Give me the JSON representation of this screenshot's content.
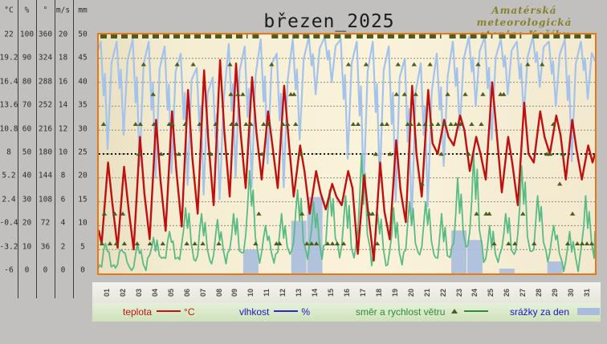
{
  "title": "březen_2025",
  "station": {
    "line1": "Amatérská meteorologická",
    "line2": "stanice Košíky"
  },
  "scale_table": {
    "headers": [
      "°C",
      "%",
      "°",
      "m/s",
      "mm"
    ],
    "rows": [
      [
        "22",
        "100",
        "360",
        "20",
        "50"
      ],
      [
        "19.2",
        "90",
        "324",
        "18",
        "45"
      ],
      [
        "16.4",
        "80",
        "288",
        "16",
        "40"
      ],
      [
        "13.6",
        "70",
        "252",
        "14",
        "35"
      ],
      [
        "10.8",
        "60",
        "216",
        "12",
        "30"
      ],
      [
        "8",
        "50",
        "180",
        "10",
        "25"
      ],
      [
        "5.2",
        "40",
        "144",
        "8",
        "20"
      ],
      [
        "2.4",
        "30",
        "108",
        "6",
        "15"
      ],
      [
        "-0.4",
        "20",
        "72",
        "4",
        "10"
      ],
      [
        "-3.2",
        "10",
        "36",
        "2",
        "5"
      ],
      [
        "-6",
        "0",
        "0",
        "0",
        "0"
      ]
    ]
  },
  "legend": {
    "temperature_label": "teplota",
    "temperature_unit": "°C",
    "humidity_label": "vlhkost",
    "humidity_unit": "%",
    "wind_label": "směr a rychlost větru",
    "rain_label": "srážky za den"
  },
  "colors": {
    "temperature": "#bf0f0f",
    "humidity": "#a3c3ec",
    "wind_speed": "#58bb84",
    "wind_direction": "#4d5d1f",
    "precipitation": "#a9bcde",
    "plot_border": "#e67917",
    "grid": "#8c8a7c",
    "midline": "#1a1a1a"
  },
  "chart_data": {
    "type": "line",
    "title": "březen_2025",
    "categories": [
      "01",
      "02",
      "03",
      "04",
      "05",
      "06",
      "07",
      "08",
      "09",
      "10",
      "11",
      "12",
      "13",
      "14",
      "15",
      "16",
      "17",
      "18",
      "19",
      "20",
      "21",
      "22",
      "23",
      "24",
      "25",
      "26",
      "27",
      "28",
      "29",
      "30",
      "31"
    ],
    "axis_scales": {
      "temperature_c": [
        -6,
        22
      ],
      "humidity_pct": [
        0,
        100
      ],
      "wind_direction_deg": [
        0,
        360
      ],
      "wind_speed_ms": [
        0,
        20
      ],
      "precipitation_mm": [
        0,
        50
      ]
    },
    "grid": "on",
    "legend_position": "bottom",
    "series": [
      {
        "name": "teplota (°C) denní minimum",
        "values": [
          -2.5,
          -3,
          -3.2,
          -2,
          -1,
          -0.5,
          1,
          2,
          3,
          4,
          5,
          4,
          3,
          1,
          1.5,
          2,
          -3.7,
          -4.5,
          -2,
          0,
          3,
          8,
          9,
          6,
          5,
          3.5,
          2,
          7,
          8,
          5,
          5
        ]
      },
      {
        "name": "teplota (°C) denní maximum",
        "values": [
          7,
          6.5,
          10,
          12,
          13,
          15.5,
          17.8,
          19,
          18.6,
          17,
          13,
          16,
          9,
          6,
          4.5,
          6,
          5.5,
          7,
          9.6,
          16,
          15.5,
          12,
          12.5,
          10,
          16.4,
          10,
          14,
          13,
          12.5,
          12,
          9
        ]
      },
      {
        "name": "vlhkost (%) denní maximum",
        "values": [
          97,
          97,
          98,
          97,
          95,
          92,
          86,
          82,
          96,
          95,
          98,
          92,
          98,
          99,
          99,
          98,
          97,
          97,
          95,
          90,
          88,
          92,
          97,
          99,
          99,
          98,
          97,
          99,
          97,
          98,
          97
        ]
      },
      {
        "name": "vlhkost (%) denní minimum",
        "values": [
          52,
          58,
          45,
          40,
          42,
          37,
          33,
          31,
          40,
          36,
          46,
          36,
          56,
          75,
          80,
          48,
          35,
          38,
          30,
          20,
          28,
          45,
          60,
          70,
          56,
          75,
          66,
          78,
          70,
          47,
          73
        ]
      },
      {
        "name": "rychlost větru (m/s) denní maximum",
        "values": [
          2.5,
          2,
          2.5,
          3,
          3.5,
          5.5,
          5,
          4.5,
          5,
          8.6,
          4,
          5,
          7,
          6,
          7,
          6.5,
          10,
          5,
          5.5,
          6,
          6,
          5,
          8,
          10,
          4,
          5,
          9,
          6.5,
          4,
          3.5,
          6.5
        ]
      },
      {
        "name": "rychlost větru (m/s) základ",
        "values": [
          0.5,
          0.8,
          0.5,
          1,
          1,
          1.5,
          1,
          1,
          1.5,
          2,
          1,
          1.5,
          2,
          1.5,
          2,
          1.5,
          2,
          1,
          1,
          1.5,
          1.5,
          1,
          2,
          2,
          1,
          1.5,
          2,
          1.5,
          1,
          0.5,
          1.5
        ]
      },
      {
        "name": "srážky za den (mm)",
        "values": [
          0,
          0,
          0,
          0,
          0,
          0,
          0,
          0,
          0,
          5,
          0,
          0,
          11,
          16,
          0,
          0,
          0,
          0,
          0,
          0,
          0,
          0,
          9,
          7,
          0,
          1,
          0,
          0,
          2.5,
          0,
          0
        ]
      }
    ],
    "wind_direction_markers_deg": [
      [
        0.2,
        45
      ],
      [
        0.3,
        225
      ],
      [
        0.35,
        90
      ],
      [
        0.7,
        45
      ],
      [
        1.0,
        90
      ],
      [
        1.1,
        45
      ],
      [
        1.5,
        90
      ],
      [
        1.6,
        45
      ],
      [
        2.3,
        225
      ],
      [
        2.4,
        45
      ],
      [
        2.5,
        180
      ],
      [
        2.6,
        225
      ],
      [
        2.8,
        315
      ],
      [
        3.2,
        45
      ],
      [
        3.4,
        270
      ],
      [
        3.45,
        225
      ],
      [
        3.9,
        180
      ],
      [
        4.0,
        45
      ],
      [
        4.4,
        225
      ],
      [
        4.6,
        225
      ],
      [
        4.9,
        315
      ],
      [
        5.0,
        180
      ],
      [
        5.4,
        225
      ],
      [
        5.5,
        45
      ],
      [
        5.9,
        315
      ],
      [
        6.0,
        45
      ],
      [
        6.3,
        225
      ],
      [
        6.5,
        45
      ],
      [
        7.0,
        180
      ],
      [
        7.3,
        225
      ],
      [
        7.5,
        45
      ],
      [
        8.2,
        315
      ],
      [
        8.25,
        270
      ],
      [
        8.3,
        225
      ],
      [
        8.6,
        225
      ],
      [
        8.7,
        270
      ],
      [
        9.0,
        270
      ],
      [
        9.2,
        225
      ],
      [
        9.5,
        225
      ],
      [
        9.8,
        45
      ],
      [
        10.0,
        90
      ],
      [
        10.2,
        180
      ],
      [
        10.3,
        225
      ],
      [
        10.6,
        225
      ],
      [
        10.8,
        315
      ],
      [
        11.1,
        45
      ],
      [
        11.3,
        45
      ],
      [
        11.5,
        225
      ],
      [
        11.8,
        225
      ],
      [
        12.0,
        270
      ],
      [
        12.2,
        270
      ],
      [
        12.3,
        225
      ],
      [
        12.6,
        180
      ],
      [
        12.7,
        90
      ],
      [
        13.0,
        45
      ],
      [
        13.3,
        45
      ],
      [
        13.6,
        45
      ],
      [
        14.3,
        45
      ],
      [
        14.6,
        45
      ],
      [
        14.9,
        45
      ],
      [
        15.3,
        45
      ],
      [
        15.6,
        315
      ],
      [
        15.9,
        225
      ],
      [
        16.2,
        225
      ],
      [
        16.7,
        315
      ],
      [
        16.9,
        90
      ],
      [
        17.1,
        90
      ],
      [
        17.3,
        180
      ],
      [
        17.4,
        45
      ],
      [
        17.7,
        225
      ],
      [
        18.0,
        225
      ],
      [
        18.2,
        180
      ],
      [
        18.6,
        270
      ],
      [
        18.7,
        315
      ],
      [
        19.1,
        270
      ],
      [
        19.3,
        225
      ],
      [
        19.5,
        225
      ],
      [
        19.7,
        315
      ],
      [
        19.8,
        270
      ],
      [
        20.0,
        225
      ],
      [
        20.2,
        135
      ],
      [
        20.4,
        225
      ],
      [
        20.7,
        315
      ],
      [
        20.8,
        225
      ],
      [
        21.2,
        225
      ],
      [
        21.4,
        180
      ],
      [
        21.6,
        225
      ],
      [
        21.8,
        270
      ],
      [
        22.0,
        225
      ],
      [
        22.3,
        225
      ],
      [
        22.6,
        225
      ],
      [
        22.9,
        270
      ],
      [
        23.1,
        180
      ],
      [
        23.3,
        225
      ],
      [
        23.6,
        90
      ],
      [
        23.7,
        315
      ],
      [
        23.9,
        225
      ],
      [
        24.0,
        270
      ],
      [
        24.2,
        90
      ],
      [
        24.4,
        90
      ],
      [
        24.7,
        45
      ],
      [
        25.1,
        270
      ],
      [
        25.3,
        270
      ],
      [
        25.6,
        45
      ],
      [
        26.0,
        45
      ],
      [
        26.5,
        90
      ],
      [
        26.8,
        315
      ],
      [
        27.2,
        45
      ],
      [
        27.7,
        315
      ],
      [
        28.0,
        180
      ],
      [
        28.2,
        180
      ],
      [
        28.4,
        225
      ],
      [
        28.8,
        135
      ],
      [
        29.0,
        180
      ],
      [
        29.3,
        45
      ],
      [
        29.6,
        90
      ],
      [
        29.9,
        45
      ],
      [
        30.2,
        45
      ],
      [
        30.5,
        45
      ],
      [
        30.8,
        45
      ]
    ],
    "north_wind_dash_segments_days": [
      [
        0.1,
        9.3
      ],
      [
        9.6,
        10.2
      ],
      [
        10.8,
        15.8
      ],
      [
        16.1,
        21.4
      ],
      [
        21.9,
        24.6
      ],
      [
        25.0,
        26.4
      ],
      [
        27.1,
        31.0
      ]
    ]
  }
}
